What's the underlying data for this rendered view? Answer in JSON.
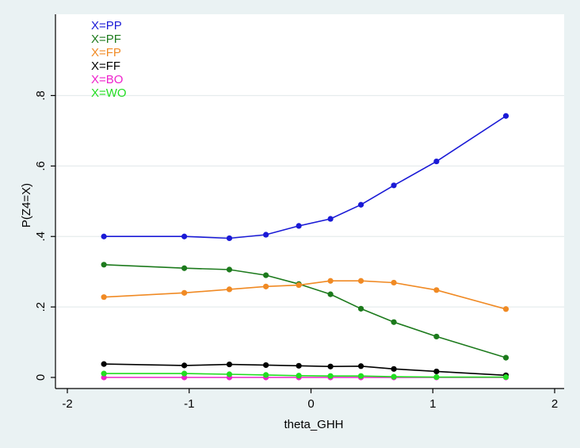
{
  "chart_data": {
    "type": "line",
    "title": "",
    "xlabel": "theta_GHH",
    "ylabel": "P(Z4=X)",
    "xlim": [
      -2,
      2
    ],
    "ylim": [
      0,
      0.8
    ],
    "xticks": [
      -2,
      -1,
      0,
      1,
      2
    ],
    "xtick_labels": [
      "-2",
      "-1",
      "0",
      "1",
      "2"
    ],
    "yticks": [
      0,
      0.2,
      0.4,
      0.6,
      0.8
    ],
    "ytick_labels": [
      "0",
      ".2",
      ".4",
      ".6",
      ".8"
    ],
    "grid": "horizontal",
    "legend_position": "top-left",
    "x": [
      -1.7,
      -1.04,
      -0.67,
      -0.37,
      -0.1,
      0.16,
      0.41,
      0.68,
      1.03,
      1.6
    ],
    "series": [
      {
        "name": "X=PP",
        "color": "#1a1ad6",
        "values": [
          0.4,
          0.4,
          0.395,
          0.405,
          0.43,
          0.45,
          0.49,
          0.545,
          0.613,
          0.742
        ]
      },
      {
        "name": "X=PF",
        "color": "#1c7a1c",
        "values": [
          0.32,
          0.31,
          0.306,
          0.29,
          0.265,
          0.236,
          0.195,
          0.157,
          0.116,
          0.056
        ]
      },
      {
        "name": "X=FP",
        "color": "#f08a24",
        "values": [
          0.228,
          0.24,
          0.25,
          0.258,
          0.262,
          0.274,
          0.274,
          0.269,
          0.248,
          0.194
        ]
      },
      {
        "name": "X=FF",
        "color": "#000000",
        "values": [
          0.038,
          0.034,
          0.037,
          0.035,
          0.033,
          0.031,
          0.032,
          0.024,
          0.017,
          0.006
        ]
      },
      {
        "name": "X=BO",
        "color": "#ee22cc",
        "values": [
          0.0,
          0.0,
          0.0,
          0.0,
          0.0,
          0.0,
          0.0,
          0.0,
          0.0,
          0.0
        ]
      },
      {
        "name": "X=WO",
        "color": "#22dd22",
        "values": [
          0.011,
          0.011,
          0.009,
          0.007,
          0.005,
          0.004,
          0.004,
          0.002,
          0.001,
          0.001
        ]
      }
    ]
  }
}
